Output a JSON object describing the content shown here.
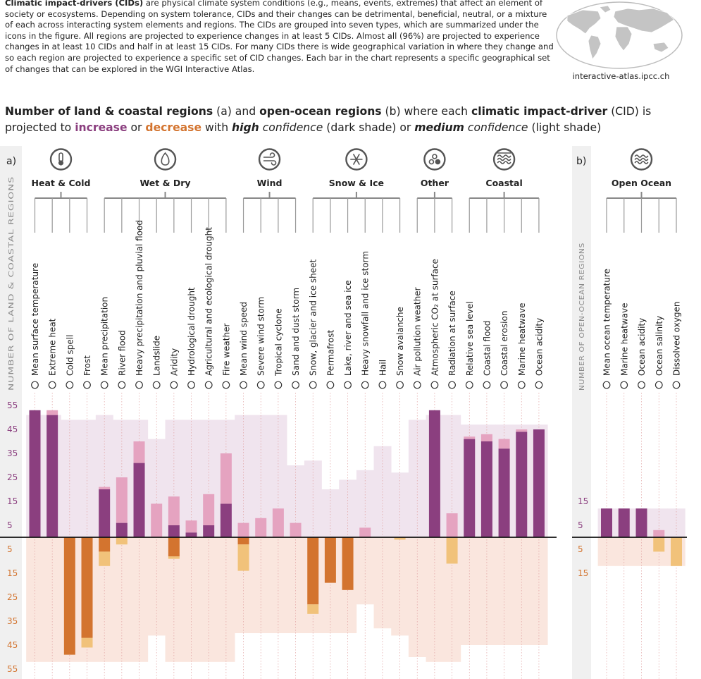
{
  "intro": {
    "lead": "Climatic impact-drivers (CIDs)",
    "text": " are physical climate system conditions (e.g., means, events, extremes) that affect an element of society or ecosystems. Depending on system tolerance, CIDs and their changes can be detrimental, beneficial, neutral, or a mixture of each across interacting system elements and regions. The CIDs are grouped into seven types, which are summarized under the icons in the figure. All regions are projected to experience changes in at least 5 CIDs. Almost all (96%) are projected to experience changes in at least 10 CIDs and half in at least 15 CIDs. For many CIDs there is wide geographical variation in where they change and so each region are projected to experience a specific set of CID changes. Each bar in the chart represents a specific geographical set of changes that can be explored in the WGI Interactive Atlas."
  },
  "map_caption": "interactive-atlas.ipcc.ch",
  "heading": {
    "p1": "Number of land & coastal regions",
    "p2": " (a) and ",
    "p3": "open-ocean regions",
    "p4": " (b) where each ",
    "p5": "climatic impact-driver",
    "p6": " (CID) is projected to ",
    "increase": "increase",
    "p7": " or ",
    "decrease": "decrease",
    "p8": " with ",
    "high": "high",
    "p9": " confidence",
    "p10": " (dark shade) or ",
    "medium": "medium",
    "p11": " confidence",
    "p12": " (light shade)"
  },
  "colors": {
    "inc_dark": "#8b3f7f",
    "inc_light": "#e5a3c0",
    "dec_dark": "#d3742f",
    "dec_light": "#f1c27a",
    "inc_bg": "#f0e4ee",
    "dec_bg": "#fae6de"
  },
  "chart_data": [
    {
      "type": "bar",
      "panel_label": "a)",
      "ylabel": "NUMBER OF LAND & COASTAL REGIONS",
      "ylim": [
        -55,
        55
      ],
      "y_ticks_pos": [
        "55",
        "45",
        "35",
        "25",
        "15",
        "5"
      ],
      "y_ticks_neg": [
        "5",
        "15",
        "25",
        "35",
        "45",
        "55"
      ],
      "groups": [
        {
          "name": "Heat & Cold",
          "icon": "thermometer-icon",
          "count": 4
        },
        {
          "name": "Wet & Dry",
          "icon": "water-drop-icon",
          "count": 8
        },
        {
          "name": "Wind",
          "icon": "wind-icon",
          "count": 4
        },
        {
          "name": "Snow & Ice",
          "icon": "snowflake-icon",
          "count": 6
        },
        {
          "name": "Other",
          "icon": "other-cids-icon",
          "count": 3
        },
        {
          "name": "Coastal",
          "icon": "coastal-icon",
          "count": 5
        }
      ],
      "categories": [
        "Mean surface temperature",
        "Extreme heat",
        "Cold spell",
        "Frost",
        "Mean precipitation",
        "River flood",
        "Heavy precipitation and pluvial flood",
        "Landslide",
        "Aridity",
        "Hydrological drought",
        "Agricultural and ecological drought",
        "Fire weather",
        "Mean wind speed",
        "Severe wind storm",
        "Tropical cyclone",
        "Sand and dust storm",
        "Snow, glacier and ice sheet",
        "Permafrost",
        "Lake, river and sea ice",
        "Heavy snowfall and ice storm",
        "Hail",
        "Snow avalanche",
        "Air pollution weather",
        "Atmospheric CO₂ at surface",
        "Radiation at surface",
        "Relative sea level",
        "Coastal flood",
        "Coastal erosion",
        "Marine heatwave",
        "Ocean acidity"
      ],
      "series": [
        {
          "name": "increase, high confidence",
          "values": [
            53,
            51,
            0,
            0,
            20,
            6,
            31,
            0,
            5,
            2,
            5,
            14,
            0,
            0,
            0,
            0,
            0,
            0,
            0,
            0,
            0,
            0,
            0,
            53,
            0,
            41,
            40,
            37,
            44,
            45
          ]
        },
        {
          "name": "increase, medium confidence",
          "values": [
            0,
            2,
            0,
            0,
            1,
            19,
            9,
            14,
            12,
            5,
            13,
            21,
            6,
            8,
            12,
            6,
            0,
            0,
            0,
            4,
            0,
            0,
            0,
            0,
            10,
            1,
            3,
            4,
            1,
            0
          ]
        },
        {
          "name": "decrease, high confidence",
          "values": [
            0,
            0,
            49,
            42,
            6,
            0,
            0,
            0,
            8,
            0,
            0,
            0,
            3,
            0,
            0,
            0,
            28,
            19,
            22,
            0,
            0,
            0,
            0,
            0,
            0,
            0,
            0,
            0,
            0,
            0
          ]
        },
        {
          "name": "decrease, medium confidence",
          "values": [
            0,
            0,
            0,
            4,
            6,
            3,
            0,
            0,
            1,
            0,
            0,
            0,
            11,
            0,
            0,
            0,
            4,
            0,
            0,
            0,
            0,
            1,
            0,
            0,
            11,
            0,
            0,
            0,
            0,
            0
          ]
        }
      ],
      "envelope_increase": [
        51,
        51,
        49,
        49,
        51,
        49,
        49,
        41,
        49,
        49,
        49,
        49,
        51,
        51,
        51,
        30,
        32,
        20,
        24,
        28,
        38,
        27,
        49,
        51,
        51,
        47,
        47,
        47,
        47,
        47
      ],
      "envelope_decrease": [
        52,
        52,
        52,
        52,
        52,
        52,
        52,
        41,
        52,
        52,
        52,
        52,
        40,
        40,
        40,
        40,
        40,
        40,
        40,
        28,
        38,
        41,
        50,
        52,
        52,
        45,
        45,
        45,
        45,
        45
      ]
    },
    {
      "type": "bar",
      "panel_label": "b)",
      "ylabel": "NUMBER OF OPEN-OCEAN REGIONS",
      "ylim": [
        -15,
        15
      ],
      "y_ticks_pos": [
        "15",
        "5"
      ],
      "y_ticks_neg": [
        "5",
        "15"
      ],
      "groups": [
        {
          "name": "Open Ocean",
          "icon": "open-ocean-icon",
          "count": 5
        }
      ],
      "categories": [
        "Mean ocean temperature",
        "Marine heatwave",
        "Ocean acidity",
        "Ocean salinity",
        "Dissolved oxygen"
      ],
      "series": [
        {
          "name": "increase, high confidence",
          "values": [
            12,
            12,
            12,
            0,
            0
          ]
        },
        {
          "name": "increase, medium confidence",
          "values": [
            0,
            0,
            0,
            3,
            0
          ]
        },
        {
          "name": "decrease, high confidence",
          "values": [
            0,
            0,
            0,
            0,
            0
          ]
        },
        {
          "name": "decrease, medium confidence",
          "values": [
            0,
            0,
            0,
            6,
            12
          ]
        }
      ],
      "envelope_increase": [
        12,
        12,
        12,
        12,
        12
      ],
      "envelope_decrease": [
        12,
        12,
        12,
        12,
        12
      ]
    }
  ]
}
